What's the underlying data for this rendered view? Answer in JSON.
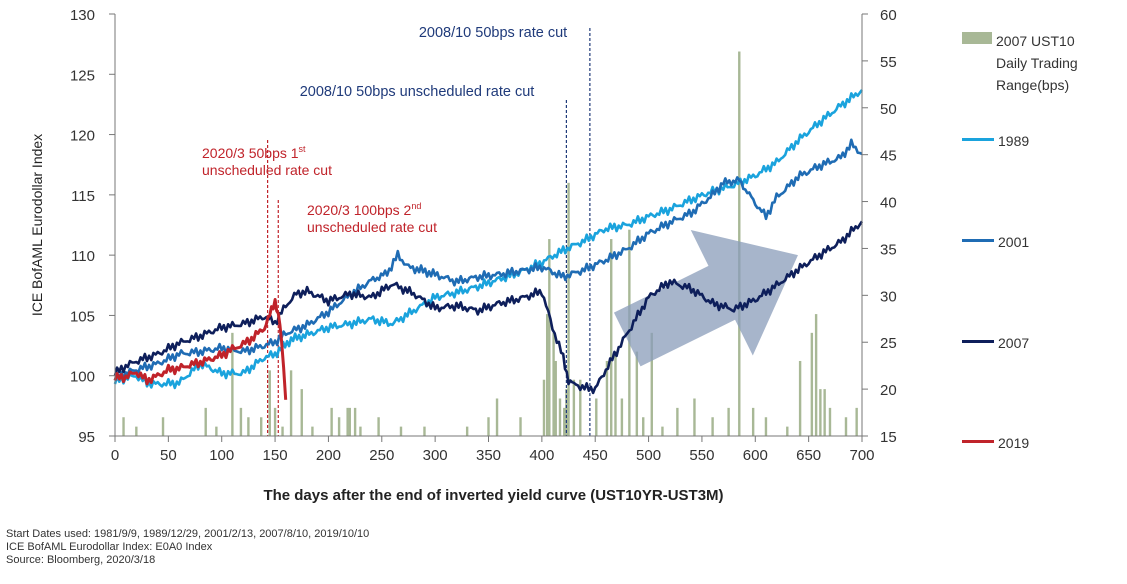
{
  "chart_data": {
    "type": "line",
    "ylabel": "ICE BofAML Eurodollar Index",
    "xlabel": "The days after the end of inverted yield curve (UST10YR-UST3M)",
    "xlim": [
      0,
      700
    ],
    "ylim": [
      95,
      130
    ],
    "y2lim": [
      15,
      60
    ],
    "x_ticks": [
      0,
      50,
      100,
      150,
      200,
      250,
      300,
      350,
      400,
      450,
      500,
      550,
      600,
      650,
      700
    ],
    "y_ticks": [
      95,
      100,
      105,
      110,
      115,
      120,
      125,
      130
    ],
    "y2_ticks": [
      15,
      20,
      25,
      30,
      35,
      40,
      45,
      50,
      55,
      60
    ],
    "grid": false,
    "legend_position": "right",
    "series": [
      {
        "name": "1989",
        "color": "#1aa3dd",
        "axis": "left",
        "x": [
          0,
          10,
          20,
          30,
          40,
          60,
          80,
          100,
          120,
          140,
          150,
          165,
          180,
          200,
          220,
          240,
          260,
          280,
          300,
          320,
          340,
          360,
          380,
          400,
          420,
          440,
          460,
          480,
          500,
          520,
          540,
          560,
          580,
          600,
          620,
          640,
          660,
          680,
          700
        ],
        "y": [
          99.5,
          99.8,
          100.0,
          99.4,
          99.3,
          99.4,
          101.0,
          100.2,
          100.2,
          101.5,
          101.8,
          103.0,
          103.4,
          104.0,
          104.3,
          104.7,
          104.3,
          105.4,
          106.5,
          106.9,
          107.4,
          108.0,
          108.6,
          109.4,
          110.4,
          111.2,
          112.2,
          112.5,
          113.2,
          113.8,
          114.6,
          115.3,
          115.8,
          116.6,
          117.7,
          119.5,
          121.0,
          122.4,
          123.7
        ]
      },
      {
        "name": "2001",
        "color": "#1f6cb4",
        "axis": "left",
        "x": [
          0,
          10,
          20,
          40,
          60,
          80,
          100,
          120,
          140,
          150,
          160,
          180,
          200,
          220,
          240,
          255,
          265,
          275,
          285,
          300,
          320,
          340,
          360,
          380,
          400,
          420,
          440,
          460,
          480,
          500,
          520,
          540,
          560,
          570,
          585,
          600,
          610,
          620,
          630,
          640,
          660,
          680,
          690,
          700
        ],
        "y": [
          99.8,
          100.2,
          100.5,
          101.0,
          101.8,
          102.0,
          102.3,
          102.0,
          102.5,
          102.8,
          103.5,
          104.2,
          105.3,
          106.7,
          107.9,
          108.5,
          110.0,
          109.0,
          108.8,
          108.4,
          107.8,
          108.2,
          108.4,
          108.7,
          109.0,
          108.2,
          108.8,
          109.6,
          110.5,
          111.8,
          112.7,
          113.5,
          115.0,
          116.0,
          116.2,
          114.3,
          113.2,
          114.8,
          115.6,
          116.5,
          117.4,
          118.1,
          119.2,
          118.4
        ]
      },
      {
        "name": "2007",
        "color": "#0e1f5b",
        "axis": "left",
        "x": [
          0,
          10,
          20,
          40,
          60,
          80,
          100,
          120,
          140,
          150,
          160,
          170,
          180,
          200,
          220,
          240,
          260,
          280,
          300,
          320,
          340,
          360,
          380,
          400,
          410,
          420,
          425,
          430,
          440,
          450,
          460,
          470,
          480,
          490,
          500,
          510,
          520,
          540,
          560,
          580,
          600,
          620,
          640,
          660,
          680,
          700
        ],
        "y": [
          100.2,
          100.8,
          101.2,
          101.8,
          102.7,
          103.3,
          104.0,
          104.3,
          104.9,
          104.4,
          105.8,
          106.8,
          107.0,
          106.2,
          106.8,
          106.5,
          107.6,
          106.8,
          105.6,
          105.8,
          105.4,
          106.0,
          106.4,
          107.0,
          104.0,
          101.5,
          99.6,
          99.3,
          99.0,
          98.9,
          100.5,
          102.0,
          103.5,
          105.0,
          106.5,
          107.2,
          107.8,
          107.2,
          106.0,
          105.5,
          106.3,
          107.5,
          108.8,
          110.0,
          111.1,
          112.8
        ]
      },
      {
        "name": "2019",
        "color": "#c0232a",
        "axis": "left",
        "x": [
          0,
          10,
          20,
          30,
          40,
          50,
          60,
          70,
          80,
          90,
          100,
          110,
          120,
          130,
          140,
          145,
          150,
          153,
          156,
          158,
          160
        ],
        "y": [
          99.8,
          99.9,
          100.3,
          99.6,
          100.0,
          100.5,
          100.6,
          100.9,
          101.1,
          101.4,
          101.7,
          102.2,
          102.6,
          103.2,
          104.0,
          105.0,
          106.2,
          105.2,
          103.0,
          100.4,
          98.0
        ]
      },
      {
        "name": "2007 UST10 Daily Trading Range(bps)",
        "type": "bar",
        "color": "#a8b896",
        "axis": "right",
        "x": [
          8,
          20,
          45,
          85,
          95,
          110,
          118,
          125,
          137,
          145,
          150,
          157,
          165,
          175,
          185,
          203,
          210,
          218,
          220,
          225,
          230,
          247,
          268,
          290,
          330,
          350,
          358,
          380,
          402,
          405,
          407,
          411,
          413,
          417,
          421,
          423,
          425,
          430,
          436,
          451,
          461,
          465,
          469,
          475,
          482,
          489,
          495,
          503,
          513,
          527,
          543,
          560,
          575,
          585,
          598,
          610,
          630,
          642,
          653,
          657,
          661,
          665,
          670,
          685,
          695
        ],
        "y": [
          17,
          16,
          17,
          18,
          16,
          26,
          18,
          17,
          17,
          22,
          18,
          16,
          22,
          20,
          16,
          18,
          17,
          18,
          18,
          18,
          16,
          17,
          16,
          16,
          16,
          17,
          19,
          17,
          21,
          28,
          36,
          26,
          23,
          19,
          18,
          20,
          42,
          21,
          21,
          19,
          23,
          36,
          24,
          19,
          37,
          24,
          17,
          26,
          16,
          18,
          19,
          17,
          18,
          56,
          18,
          17,
          16,
          23,
          26,
          28,
          20,
          20,
          18,
          17,
          18
        ]
      }
    ],
    "annotations": [
      {
        "text": "2008/10 50bps rate cut",
        "color": "#1f3a7a",
        "x": 445
      },
      {
        "text": "2008/10 50bps unscheduled  rate cut",
        "color": "#1f3a7a",
        "x": 423
      },
      {
        "text_main": "2020/3 50bps 1",
        "sup": "st",
        "text_line2": "unscheduled  rate cut",
        "color": "#c0232a",
        "x": 143
      },
      {
        "text_main": "2020/3 100bps 2",
        "sup": "nd",
        "text_line2": "unscheduled  rate cut",
        "color": "#c0232a",
        "x": 153
      }
    ],
    "arrow": {
      "color": "#8a9cba",
      "from": [
        480,
        103
      ],
      "to": [
        640,
        110
      ]
    }
  },
  "legend": {
    "items": [
      {
        "label": "2007 UST10",
        "label2": "Daily Trading",
        "label3": "Range(bps)",
        "kind": "box",
        "color": "#a8b896"
      },
      {
        "label": "1989",
        "kind": "line",
        "color": "#1aa3dd"
      },
      {
        "label": "2001",
        "kind": "line",
        "color": "#1f6cb4"
      },
      {
        "label": "2007",
        "kind": "line",
        "color": "#0e1f5b"
      },
      {
        "label": "2019",
        "kind": "line",
        "color": "#c0232a"
      }
    ]
  },
  "notes": {
    "line1": "Start Dates used: 1981/9/9, 1989/12/29, 2001/2/13, 2007/8/10, 2019/10/10",
    "line2": "ICE BofAML Eurodollar Index: E0A0 Index",
    "line3": "Source: Bloomberg, 2020/3/18"
  }
}
